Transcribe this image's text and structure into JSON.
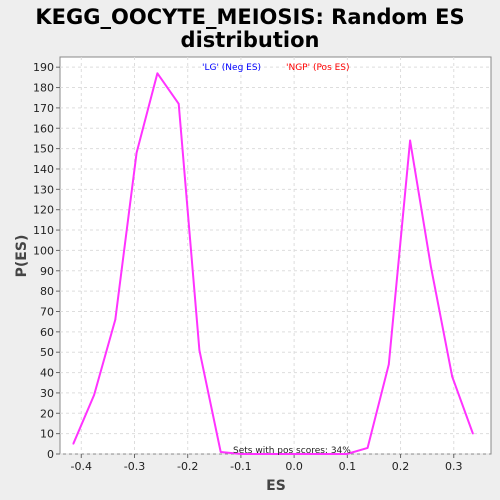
{
  "chart_data": {
    "type": "line",
    "title_lines": [
      "KEGG_OOCYTE_MEIOSIS: Random ES",
      "distribution"
    ],
    "xlabel": "ES",
    "ylabel": "P(ES)",
    "xlim": [
      -0.44,
      0.37
    ],
    "ylim": [
      0,
      195
    ],
    "x_ticks": [
      -0.4,
      -0.3,
      -0.2,
      -0.1,
      0.0,
      0.1,
      0.2,
      0.3
    ],
    "x_tick_labels": [
      "-0.4",
      "-0.3",
      "-0.2",
      "-0.1",
      "0.0",
      "0.1",
      "0.2",
      "0.3"
    ],
    "y_ticks": [
      0,
      10,
      20,
      30,
      40,
      50,
      60,
      70,
      80,
      90,
      100,
      110,
      120,
      130,
      140,
      150,
      160,
      170,
      180,
      190
    ],
    "grid": true,
    "legend": [
      {
        "label": "'LG' (Neg ES)",
        "color": "#0000ff"
      },
      {
        "label": "'NGP' (Pos ES)",
        "color": "#ff0000"
      }
    ],
    "legend_position": "top-center",
    "annotation": "Sets with pos scores: 34%",
    "series": [
      {
        "color": "#ff33ff",
        "x": [
          -0.415,
          -0.376,
          -0.336,
          -0.296,
          -0.257,
          -0.217,
          -0.178,
          -0.138,
          -0.099,
          -0.059,
          -0.02,
          0.02,
          0.059,
          0.099,
          0.138,
          0.178,
          0.218,
          0.257,
          0.297,
          0.336
        ],
        "y": [
          5,
          29,
          66,
          148,
          187,
          172,
          51,
          1,
          0,
          0,
          0,
          0,
          0,
          0,
          3,
          44,
          154,
          92,
          38,
          10
        ]
      }
    ]
  }
}
